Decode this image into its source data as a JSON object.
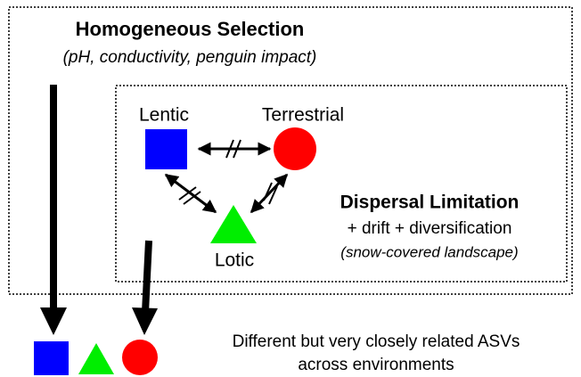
{
  "header": {
    "title": "Homogeneous Selection",
    "subtitle": "(pH, conductivity, penguin impact)"
  },
  "nodes": [
    {
      "label": "Lentic"
    },
    {
      "label": "Terrestrial"
    },
    {
      "label": "Lotic"
    }
  ],
  "process": {
    "title": "Dispersal Limitation",
    "line1": "+ drift + diversification",
    "line2": "(snow-covered landscape)"
  },
  "result": {
    "line1": "Different but very closely related ASVs",
    "line2": "across environments"
  }
}
